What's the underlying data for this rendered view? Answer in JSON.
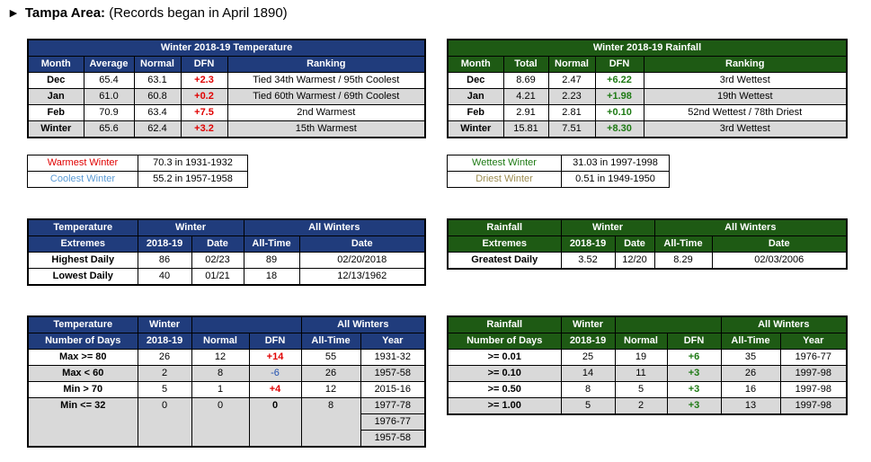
{
  "title": {
    "arrow": "►",
    "bold": "Tampa Area:",
    "rest": " (Records began in April 1890)"
  },
  "temp": {
    "title": "Winter 2018-19 Temperature",
    "headers": [
      "Month",
      "Average",
      "Normal",
      "DFN",
      "Ranking"
    ],
    "rows": [
      {
        "month": "Dec",
        "avg": "65.4",
        "normal": "63.1",
        "dfn": "+2.3",
        "ranking": "Tied 34th Warmest / 95th Coolest"
      },
      {
        "month": "Jan",
        "avg": "61.0",
        "normal": "60.8",
        "dfn": "+0.2",
        "ranking": "Tied 60th Warmest / 69th Coolest"
      },
      {
        "month": "Feb",
        "avg": "70.9",
        "normal": "63.4",
        "dfn": "+7.5",
        "ranking": "2nd Warmest"
      },
      {
        "month": "Winter",
        "avg": "65.6",
        "normal": "62.4",
        "dfn": "+3.2",
        "ranking": "15th Warmest"
      }
    ]
  },
  "rain": {
    "title": "Winter 2018-19 Rainfall",
    "headers": [
      "Month",
      "Total",
      "Normal",
      "DFN",
      "Ranking"
    ],
    "rows": [
      {
        "month": "Dec",
        "total": "8.69",
        "normal": "2.47",
        "dfn": "+6.22",
        "ranking": "3rd Wettest"
      },
      {
        "month": "Jan",
        "total": "4.21",
        "normal": "2.23",
        "dfn": "+1.98",
        "ranking": "19th Wettest"
      },
      {
        "month": "Feb",
        "total": "2.91",
        "normal": "2.81",
        "dfn": "+0.10",
        "ranking": "52nd Wettest / 78th Driest"
      },
      {
        "month": "Winter",
        "total": "15.81",
        "normal": "7.51",
        "dfn": "+8.30",
        "ranking": "3rd Wettest"
      }
    ]
  },
  "temp_records": {
    "warmest_label": "Warmest Winter",
    "warmest_value": "70.3 in 1931-1932",
    "coolest_label": "Coolest Winter",
    "coolest_value": "55.2 in 1957-1958"
  },
  "rain_records": {
    "wettest_label": "Wettest Winter",
    "wettest_value": "31.03 in 1997-1998",
    "driest_label": "Driest Winter",
    "driest_value": "0.51 in 1949-1950"
  },
  "temp_extremes": {
    "h1": "Temperature",
    "h2": "Extremes",
    "winter": "Winter",
    "all_winters": "All Winters",
    "season": "2018-19",
    "date": "Date",
    "alltime": "All-Time",
    "date2": "Date",
    "rows": [
      {
        "label": "Highest Daily",
        "val": "86",
        "date": "02/23",
        "at": "89",
        "atdate": "02/20/2018"
      },
      {
        "label": "Lowest Daily",
        "val": "40",
        "date": "01/21",
        "at": "18",
        "atdate": "12/13/1962"
      }
    ]
  },
  "rain_extremes": {
    "h1": "Rainfall",
    "h2": "Extremes",
    "winter": "Winter",
    "all_winters": "All Winters",
    "season": "2018-19",
    "date": "Date",
    "alltime": "All-Time",
    "date2": "Date",
    "rows": [
      {
        "label": "Greatest Daily",
        "val": "3.52",
        "date": "12/20",
        "at": "8.29",
        "atdate": "02/03/2006"
      }
    ]
  },
  "temp_days": {
    "h1": "Temperature",
    "h2": "Number of Days",
    "winter": "Winter",
    "season": "2018-19",
    "normal": "Normal",
    "dfn": "DFN",
    "all_winters": "All Winters",
    "alltime": "All-Time",
    "year": "Year",
    "rows": [
      {
        "label": "Max >= 80",
        "val": "26",
        "normal": "12",
        "dfn": "+14",
        "at": "55",
        "year": "1931-32"
      },
      {
        "label": "Max < 60",
        "val": "2",
        "normal": "8",
        "dfn": "-6",
        "at": "26",
        "year": "1957-58"
      },
      {
        "label": "Min > 70",
        "val": "5",
        "normal": "1",
        "dfn": "+4",
        "at": "12",
        "year": "2015-16"
      },
      {
        "label": "Min <= 32",
        "val": "0",
        "normal": "0",
        "dfn": "0",
        "at": "8",
        "year": "1977-78"
      }
    ],
    "extra_years": [
      "1976-77",
      "1957-58"
    ]
  },
  "rain_days": {
    "h1": "Rainfall",
    "h2": "Number of Days",
    "winter": "Winter",
    "season": "2018-19",
    "normal": "Normal",
    "dfn": "DFN",
    "all_winters": "All Winters",
    "alltime": "All-Time",
    "year": "Year",
    "rows": [
      {
        "label": ">= 0.01",
        "val": "25",
        "normal": "19",
        "dfn": "+6",
        "at": "35",
        "year": "1976-77"
      },
      {
        "label": ">= 0.10",
        "val": "14",
        "normal": "11",
        "dfn": "+3",
        "at": "26",
        "year": "1997-98"
      },
      {
        "label": ">= 0.50",
        "val": "8",
        "normal": "5",
        "dfn": "+3",
        "at": "16",
        "year": "1997-98"
      },
      {
        "label": ">= 1.00",
        "val": "5",
        "normal": "2",
        "dfn": "+3",
        "at": "13",
        "year": "1997-98"
      }
    ]
  },
  "colors": {
    "blue_header": "#203c7c",
    "green_header": "#1e5a14",
    "gray_row": "#d9d9d9",
    "red": "#e00000",
    "green": "#1e7a14"
  }
}
